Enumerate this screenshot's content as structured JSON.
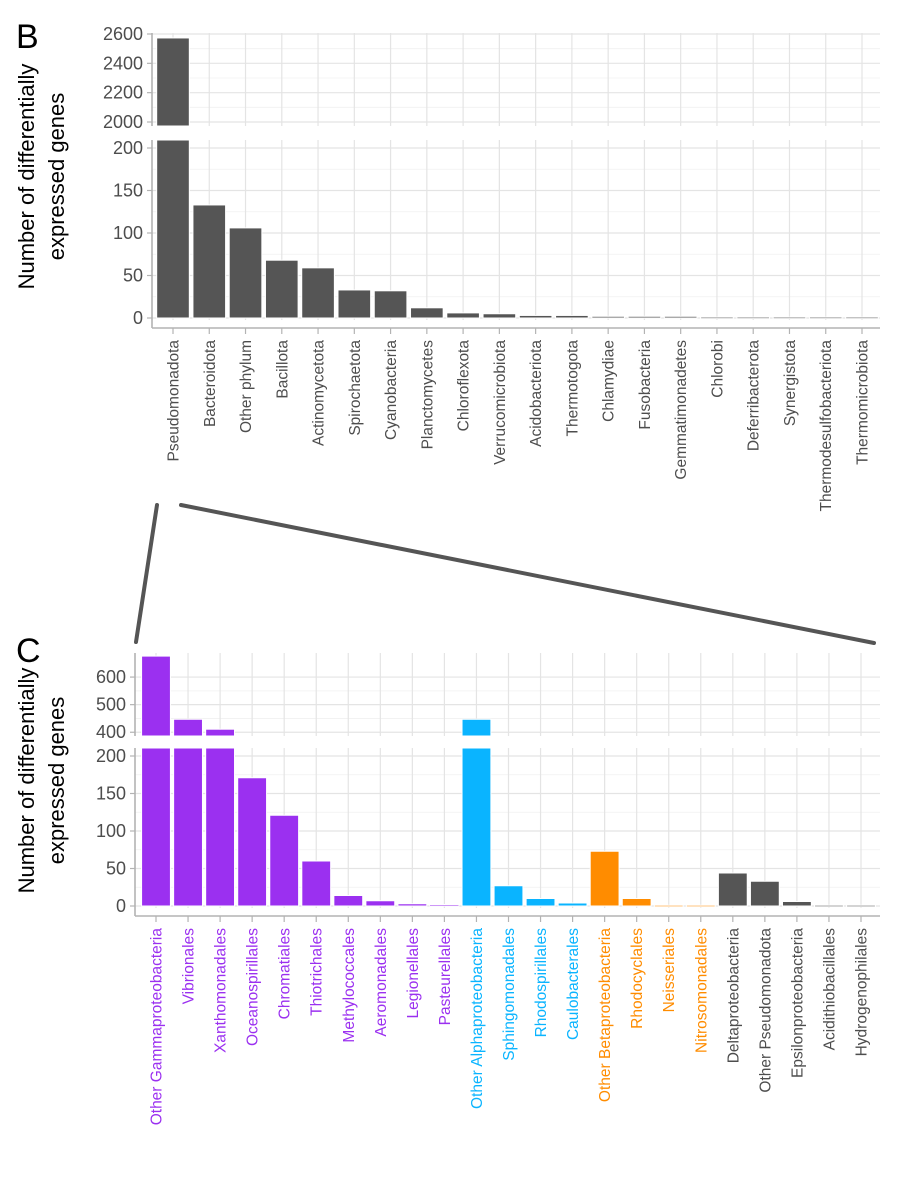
{
  "chart_data": [
    {
      "panel": "B",
      "type": "bar",
      "ylabel": "Number of differentially expressed genes",
      "ylabel_lines": [
        "Number of differentially",
        "expressed genes"
      ],
      "broken_axis": true,
      "lower_ylim": [
        0,
        210
      ],
      "upper_ylim": [
        2000,
        2600
      ],
      "lower_yticks": [
        0,
        50,
        100,
        150,
        200
      ],
      "upper_yticks": [
        2000,
        2200,
        2400,
        2600
      ],
      "grid": true,
      "categories": [
        "Pseudomonadota",
        "Bacteroidota",
        "Other phylum",
        "Bacillota",
        "Actinomycetota",
        "Spirochaetota",
        "Cyanobacteria",
        "Planctomycetes",
        "Chloroflexota",
        "Verrucomicrobiota",
        "Acidobacteriota",
        "Thermotogota",
        "Chlamydiae",
        "Fusobacteria",
        "Gemmatimonadetes",
        "Chlorobi",
        "Deferribacterota",
        "Synergistota",
        "Thermodesulfobacteriota",
        "Thermomicrobiota"
      ],
      "values": [
        2573,
        133,
        106,
        68,
        59,
        33,
        32,
        12,
        6,
        5,
        3,
        3,
        2,
        2,
        2,
        1,
        1,
        1,
        1,
        1
      ],
      "bar_color": "#555555",
      "label_colors": [
        "#4d4d4d"
      ]
    },
    {
      "panel": "C",
      "type": "bar",
      "ylabel": "Number of differentially expressed genes",
      "ylabel_lines": [
        "Number of differentially",
        "expressed genes"
      ],
      "broken_axis": true,
      "lower_ylim": [
        0,
        210
      ],
      "upper_ylim": [
        390,
        680
      ],
      "lower_yticks": [
        0,
        50,
        100,
        150,
        200
      ],
      "upper_yticks": [
        400,
        500,
        600
      ],
      "grid": true,
      "categories": [
        "Other Gammaproteobacteria",
        "Vibrionales",
        "Xanthomonadales",
        "Oceanospirillales",
        "Chromatiales",
        "Thiotrichales",
        "Methylococcales",
        "Aeromonadales",
        "Legionellales",
        "Pasteurellales",
        "Other Alphaproteobacteria",
        "Sphingomonadales",
        "Rhodospirillales",
        "Caulobacterales",
        "Other Betaproteobacteria",
        "Rhodocyclales",
        "Neisseriales",
        "Nitrosomonadales",
        "Deltaproteobacteria",
        "Other Pseudomonadota",
        "Epsilonproteobacteria",
        "Acidithiobacillales",
        "Hydrogenophilales"
      ],
      "values": [
        676,
        447,
        411,
        171,
        121,
        60,
        14,
        7,
        3,
        2,
        447,
        27,
        10,
        4,
        73,
        10,
        1,
        1,
        44,
        33,
        6,
        1,
        1
      ],
      "groups": [
        "Gammaproteobacteria",
        "Gammaproteobacteria",
        "Gammaproteobacteria",
        "Gammaproteobacteria",
        "Gammaproteobacteria",
        "Gammaproteobacteria",
        "Gammaproteobacteria",
        "Gammaproteobacteria",
        "Gammaproteobacteria",
        "Gammaproteobacteria",
        "Alphaproteobacteria",
        "Alphaproteobacteria",
        "Alphaproteobacteria",
        "Alphaproteobacteria",
        "Betaproteobacteria",
        "Betaproteobacteria",
        "Betaproteobacteria",
        "Betaproteobacteria",
        "Other",
        "Other",
        "Other",
        "Other",
        "Other"
      ],
      "group_colors": {
        "Gammaproteobacteria": "#9b30f0",
        "Alphaproteobacteria": "#0ab4ff",
        "Betaproteobacteria": "#ff8c00",
        "Other": "#555555"
      },
      "group_label_colors": {
        "Gammaproteobacteria": "#9b30f0",
        "Alphaproteobacteria": "#0ab4ff",
        "Betaproteobacteria": "#ff8c00",
        "Other": "#4d4d4d"
      }
    }
  ],
  "panels": {
    "b_label": "B",
    "c_label": "C"
  },
  "connector_color": "#555555"
}
